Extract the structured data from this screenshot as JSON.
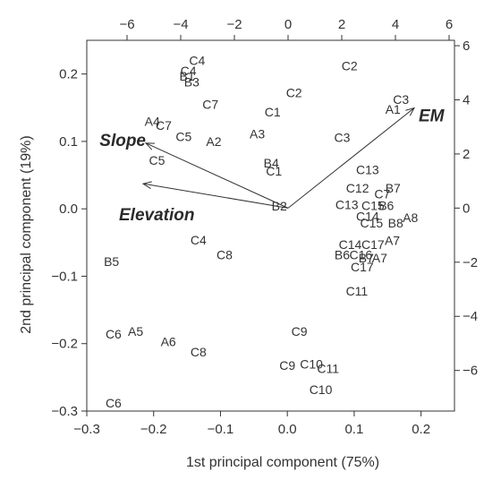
{
  "chart_data": {
    "type": "scatter",
    "xlabel": "1st principal component (75%)",
    "ylabel": "2nd principal component (19%)",
    "xlim": [
      -0.3,
      0.25
    ],
    "ylim": [
      -0.3,
      0.25
    ],
    "x_ticks": [
      -0.3,
      -0.2,
      -0.1,
      0.0,
      0.1,
      0.2
    ],
    "x_tick_labels": [
      "−0.3",
      "−0.2",
      "−0.1",
      "0.0",
      "0.1",
      "0.2"
    ],
    "y_ticks": [
      -0.3,
      -0.2,
      -0.1,
      0.0,
      0.1,
      0.2
    ],
    "y_tick_labels": [
      "−0.3",
      "−0.2",
      "−0.1",
      "0.0",
      "0.1",
      "0.2"
    ],
    "top_axis": {
      "lim": [
        -7.5,
        6.2
      ],
      "ticks": [
        -6,
        -4,
        -2,
        0,
        2,
        4,
        6
      ],
      "tick_labels": [
        "−6",
        "−4",
        "−2",
        "0",
        "2",
        "4",
        "6"
      ]
    },
    "right_axis": {
      "lim": [
        -7.5,
        6.2
      ],
      "ticks": [
        -6,
        -4,
        -2,
        0,
        2,
        4,
        6
      ],
      "tick_labels": [
        "−6",
        "−4",
        "−2",
        "0",
        "2",
        "4",
        "6"
      ]
    },
    "points": [
      {
        "label": "C4",
        "x": -0.135,
        "y": 0.22
      },
      {
        "label": "C4",
        "x": -0.148,
        "y": 0.205
      },
      {
        "label": "B1",
        "x": -0.15,
        "y": 0.197
      },
      {
        "label": "B3",
        "x": -0.143,
        "y": 0.188
      },
      {
        "label": "C2",
        "x": 0.093,
        "y": 0.212
      },
      {
        "label": "C2",
        "x": 0.01,
        "y": 0.172
      },
      {
        "label": "C3",
        "x": 0.17,
        "y": 0.162
      },
      {
        "label": "A1",
        "x": 0.158,
        "y": 0.148
      },
      {
        "label": "C7",
        "x": -0.115,
        "y": 0.155
      },
      {
        "label": "C1",
        "x": -0.022,
        "y": 0.144
      },
      {
        "label": "A4",
        "x": -0.202,
        "y": 0.13
      },
      {
        "label": "C7",
        "x": -0.185,
        "y": 0.124
      },
      {
        "label": "C5",
        "x": -0.155,
        "y": 0.107
      },
      {
        "label": "A2",
        "x": -0.11,
        "y": 0.1
      },
      {
        "label": "A3",
        "x": -0.045,
        "y": 0.111
      },
      {
        "label": "C3",
        "x": 0.082,
        "y": 0.106
      },
      {
        "label": "C5",
        "x": -0.195,
        "y": 0.072
      },
      {
        "label": "B4",
        "x": -0.024,
        "y": 0.068
      },
      {
        "label": "C1",
        "x": -0.02,
        "y": 0.056
      },
      {
        "label": "C13",
        "x": 0.12,
        "y": 0.058
      },
      {
        "label": "C12",
        "x": 0.105,
        "y": 0.031
      },
      {
        "label": "B7",
        "x": 0.158,
        "y": 0.031
      },
      {
        "label": "C7",
        "x": 0.142,
        "y": 0.022
      },
      {
        "label": "C13",
        "x": 0.089,
        "y": 0.006
      },
      {
        "label": "C15",
        "x": 0.128,
        "y": 0.005
      },
      {
        "label": "B6",
        "x": 0.148,
        "y": 0.005
      },
      {
        "label": "B2",
        "x": -0.012,
        "y": 0.004
      },
      {
        "label": "C14",
        "x": 0.12,
        "y": -0.011
      },
      {
        "label": "C15",
        "x": 0.126,
        "y": -0.021
      },
      {
        "label": "B8",
        "x": 0.162,
        "y": -0.021
      },
      {
        "label": "A8",
        "x": 0.184,
        "y": -0.013
      },
      {
        "label": "A7",
        "x": 0.157,
        "y": -0.047
      },
      {
        "label": "C4",
        "x": -0.133,
        "y": -0.046
      },
      {
        "label": "C14",
        "x": 0.094,
        "y": -0.053
      },
      {
        "label": "C17",
        "x": 0.128,
        "y": -0.053
      },
      {
        "label": "C8",
        "x": -0.094,
        "y": -0.068
      },
      {
        "label": "B6",
        "x": 0.082,
        "y": -0.068
      },
      {
        "label": "C16",
        "x": 0.11,
        "y": -0.068
      },
      {
        "label": "B7",
        "x": 0.118,
        "y": -0.073
      },
      {
        "label": "A7",
        "x": 0.138,
        "y": -0.073
      },
      {
        "label": "C17",
        "x": 0.112,
        "y": -0.086
      },
      {
        "label": "B5",
        "x": -0.263,
        "y": -0.078
      },
      {
        "label": "C11",
        "x": 0.104,
        "y": -0.122
      },
      {
        "label": "C9",
        "x": 0.018,
        "y": -0.182
      },
      {
        "label": "C6",
        "x": -0.26,
        "y": -0.186
      },
      {
        "label": "A5",
        "x": -0.227,
        "y": -0.182
      },
      {
        "label": "A6",
        "x": -0.178,
        "y": -0.197
      },
      {
        "label": "C8",
        "x": -0.133,
        "y": -0.212
      },
      {
        "label": "C9",
        "x": 0.0,
        "y": -0.232
      },
      {
        "label": "C10",
        "x": 0.036,
        "y": -0.23
      },
      {
        "label": "C11",
        "x": 0.061,
        "y": -0.237
      },
      {
        "label": "C10",
        "x": 0.05,
        "y": -0.268
      },
      {
        "label": "C6",
        "x": -0.26,
        "y": -0.288
      }
    ],
    "vectors": [
      {
        "label": "EM",
        "x": 4.7,
        "y": 3.7
      },
      {
        "label": "Slope",
        "x": -5.3,
        "y": 2.4
      },
      {
        "label": "Elevation",
        "x": -5.4,
        "y": 0.9
      }
    ]
  }
}
